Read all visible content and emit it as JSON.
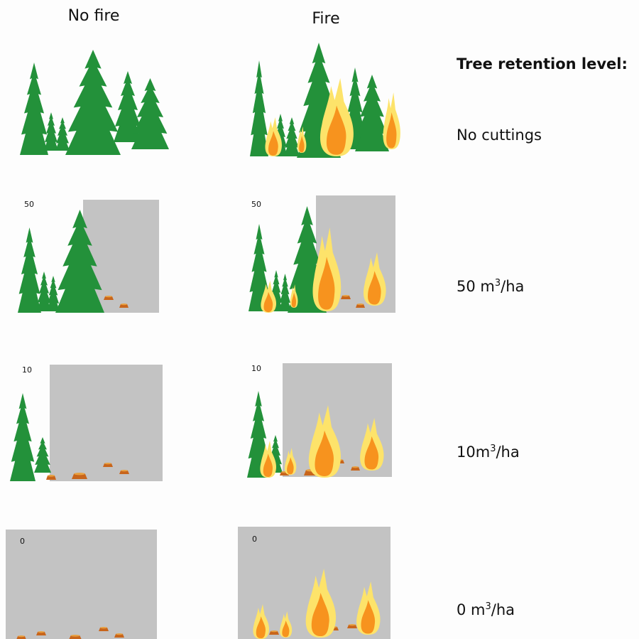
{
  "columns": {
    "no_fire": "No fire",
    "fire": "Fire"
  },
  "legend": {
    "title": "Tree retention level:",
    "levels": [
      {
        "text": "No cuttings"
      },
      {
        "text": "50 m",
        "sup": "3",
        "unit": "/ha"
      },
      {
        "text": "10m",
        "sup": "3",
        "unit": "/ha"
      },
      {
        "text": "0 m",
        "sup": "3",
        "unit": "/ha"
      }
    ]
  },
  "panel_labels": {
    "no_fire": [
      "50",
      "10",
      "0"
    ],
    "fire": [
      "50",
      "10",
      "0"
    ]
  }
}
